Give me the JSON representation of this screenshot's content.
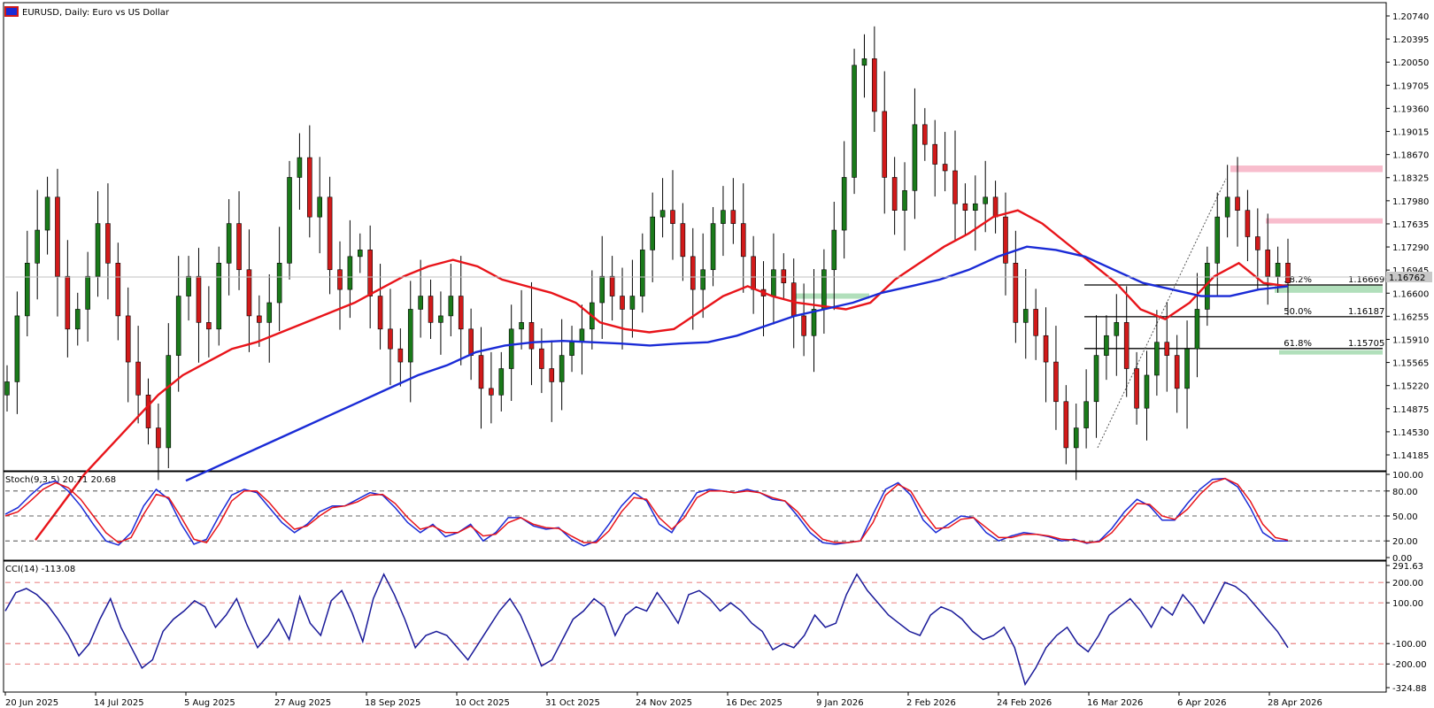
{
  "window": {
    "symbol": "EURUSD",
    "timeframe": "Daily",
    "description": "Euro vs US Dollar",
    "title_text": "EURUSD, Daily:  Euro vs US Dollar"
  },
  "colors": {
    "bull": "#1a7a1a",
    "bear": "#d11a1a",
    "ma_fast": "#e8141a",
    "ma_slow": "#1a2bd6",
    "stoch_main": "#1a2bd6",
    "stoch_signal": "#e8141a",
    "cci": "#1a1a99",
    "resistance_zone": "#f7b6c8",
    "support_zone": "#a8dcb4",
    "fib_line": "#000000"
  },
  "chart_data": [
    {
      "type": "candlestick",
      "panel": "price",
      "title": "EURUSD, Daily:  Euro vs US Dollar",
      "x_tick_labels": [
        "20 Jun 2025",
        "14 Jul 2025",
        "5 Aug 2025",
        "27 Aug 2025",
        "18 Sep 2025",
        "10 Oct 2025",
        "31 Oct 2025",
        "24 Nov 2025",
        "16 Dec 2025",
        "9 Jan 2026",
        "2 Feb 2026",
        "24 Feb 2026",
        "16 Mar 2026",
        "6 Apr 2026",
        "28 Apr 2026"
      ],
      "y_tick_labels": [
        "1.20740",
        "1.20395",
        "1.20050",
        "1.19705",
        "1.19360",
        "1.19015",
        "1.18670",
        "1.18325",
        "1.17980",
        "1.17635",
        "1.17290",
        "1.16945",
        "1.16600",
        "1.16255",
        "1.15910",
        "1.15565",
        "1.15220",
        "1.14875",
        "1.14530",
        "1.14185"
      ],
      "ylim": [
        1.1385,
        1.2095
      ],
      "current_price": "1.16762",
      "close_path": [
        1.152,
        1.162,
        1.17,
        1.175,
        1.18,
        1.168,
        1.16,
        1.163,
        1.168,
        1.176,
        1.17,
        1.162,
        1.155,
        1.15,
        1.145,
        1.142,
        1.156,
        1.165,
        1.168,
        1.161,
        1.16,
        1.17,
        1.176,
        1.169,
        1.162,
        1.161,
        1.164,
        1.17,
        1.183,
        1.186,
        1.177,
        1.18,
        1.169,
        1.166,
        1.171,
        1.172,
        1.165,
        1.16,
        1.157,
        1.155,
        1.163,
        1.165,
        1.161,
        1.162,
        1.165,
        1.16,
        1.156,
        1.151,
        1.15,
        1.154,
        1.16,
        1.161,
        1.157,
        1.154,
        1.152,
        1.156,
        1.158,
        1.16,
        1.164,
        1.168,
        1.165,
        1.163,
        1.165,
        1.172,
        1.177,
        1.178,
        1.176,
        1.171,
        1.166,
        1.169,
        1.176,
        1.178,
        1.176,
        1.171,
        1.166,
        1.165,
        1.169,
        1.167,
        1.162,
        1.159,
        1.163,
        1.169,
        1.175,
        1.183,
        1.2,
        1.201,
        1.193,
        1.183,
        1.178,
        1.181,
        1.191,
        1.188,
        1.185,
        1.184,
        1.179,
        1.178,
        1.179,
        1.18,
        1.177,
        1.17,
        1.161,
        1.163,
        1.159,
        1.155,
        1.149,
        1.142,
        1.145,
        1.149,
        1.156,
        1.159,
        1.161,
        1.154,
        1.148,
        1.153,
        1.158,
        1.156,
        1.151,
        1.157,
        1.163,
        1.17,
        1.177,
        1.18,
        1.178,
        1.174,
        1.172,
        1.168,
        1.17,
        1.167
      ],
      "ma_fast_path": [
        1.128,
        1.133,
        1.138,
        1.142,
        1.146,
        1.15,
        1.153,
        1.155,
        1.157,
        1.158,
        1.1595,
        1.161,
        1.1625,
        1.164,
        1.166,
        1.168,
        1.1695,
        1.1705,
        1.1695,
        1.1675,
        1.1665,
        1.1655,
        1.164,
        1.161,
        1.16,
        1.1595,
        1.16,
        1.1625,
        1.165,
        1.1665,
        1.165,
        1.164,
        1.1635,
        1.163,
        1.164,
        1.1675,
        1.17,
        1.1725,
        1.1745,
        1.177,
        1.178,
        1.176,
        1.173,
        1.17,
        1.167,
        1.163,
        1.1615,
        1.164,
        1.168,
        1.17,
        1.167,
        1.1665
      ],
      "ma_slow_path": [
        1.137,
        1.139,
        1.141,
        1.143,
        1.145,
        1.147,
        1.149,
        1.151,
        1.153,
        1.1545,
        1.1565,
        1.1575,
        1.158,
        1.1582,
        1.158,
        1.1578,
        1.1575,
        1.1578,
        1.158,
        1.159,
        1.1605,
        1.162,
        1.163,
        1.164,
        1.1655,
        1.1665,
        1.1675,
        1.169,
        1.171,
        1.1725,
        1.172,
        1.171,
        1.169,
        1.167,
        1.166,
        1.165,
        1.165,
        1.166,
        1.1665
      ],
      "zones": [
        {
          "kind": "resistance",
          "from": 1.1838,
          "to": 1.1848
        },
        {
          "kind": "resistance",
          "from": 1.176,
          "to": 1.1768
        },
        {
          "kind": "support",
          "from": 1.1655,
          "to": 1.1666
        },
        {
          "kind": "support",
          "from": 1.1562,
          "to": 1.1568
        },
        {
          "kind": "support",
          "from": 1.1646,
          "to": 1.1654
        }
      ],
      "fibonacci": [
        {
          "pct": "38.2%",
          "value": "1.16669",
          "price": 1.16669
        },
        {
          "pct": "50.0%",
          "value": "1.16187",
          "price": 1.16187
        },
        {
          "pct": "61.8%",
          "value": "1.15705",
          "price": 1.15705
        }
      ],
      "trend_line": {
        "from_price": 1.142,
        "to_price": 1.1828
      }
    },
    {
      "type": "line",
      "panel": "stochastic",
      "title": "Stoch(9,3,5) 20.71 20.68",
      "y_tick_labels": [
        "100.00",
        "80.00",
        "50.00",
        "20.00",
        "0.00"
      ],
      "ylim": [
        0,
        100
      ],
      "levels": [
        80,
        50,
        20
      ],
      "series": [
        {
          "key": "main",
          "values": [
            52,
            60,
            75,
            88,
            92,
            80,
            62,
            40,
            20,
            15,
            30,
            62,
            82,
            70,
            40,
            16,
            22,
            50,
            75,
            82,
            78,
            60,
            42,
            30,
            40,
            55,
            62,
            62,
            70,
            78,
            75,
            60,
            42,
            30,
            40,
            25,
            30,
            40,
            20,
            30,
            48,
            48,
            38,
            34,
            36,
            22,
            14,
            20,
            40,
            62,
            78,
            68,
            40,
            30,
            55,
            78,
            82,
            80,
            78,
            82,
            78,
            70,
            68,
            50,
            30,
            18,
            16,
            18,
            20,
            52,
            82,
            90,
            75,
            45,
            30,
            40,
            50,
            48,
            30,
            20,
            26,
            30,
            28,
            25,
            20,
            22,
            17,
            20,
            35,
            55,
            70,
            62,
            45,
            45,
            65,
            82,
            94,
            95,
            85,
            60,
            30,
            20,
            20
          ]
        },
        {
          "key": "signal",
          "values": [
            50,
            55,
            68,
            82,
            90,
            84,
            70,
            50,
            30,
            18,
            24,
            52,
            76,
            72,
            48,
            22,
            18,
            40,
            68,
            80,
            80,
            66,
            48,
            34,
            38,
            50,
            60,
            62,
            67,
            75,
            76,
            65,
            48,
            34,
            38,
            30,
            30,
            38,
            26,
            28,
            42,
            48,
            40,
            36,
            35,
            26,
            18,
            18,
            32,
            55,
            72,
            70,
            48,
            34,
            48,
            72,
            80,
            80,
            78,
            80,
            78,
            72,
            68,
            55,
            36,
            22,
            18,
            18,
            20,
            42,
            75,
            88,
            80,
            55,
            35,
            36,
            46,
            48,
            36,
            24,
            24,
            28,
            28,
            26,
            22,
            21,
            18,
            19,
            30,
            48,
            65,
            64,
            50,
            46,
            58,
            76,
            90,
            95,
            88,
            68,
            40,
            24,
            21
          ]
        }
      ]
    },
    {
      "type": "line",
      "panel": "cci",
      "title": "CCI(14) -113.08",
      "y_tick_labels": [
        "291.63",
        "200.00",
        "100.00",
        "-100.00",
        "-200.00",
        "-324.88"
      ],
      "ylim": [
        -324.88,
        291.63
      ],
      "levels": [
        200,
        100,
        -100,
        -200
      ],
      "series": [
        {
          "key": "cci",
          "values": [
            60,
            150,
            170,
            140,
            90,
            20,
            -60,
            -160,
            -100,
            20,
            120,
            -20,
            -120,
            -220,
            -180,
            -40,
            20,
            60,
            110,
            80,
            -20,
            40,
            120,
            -10,
            -120,
            -60,
            20,
            -80,
            130,
            0,
            -60,
            110,
            160,
            50,
            -90,
            120,
            240,
            140,
            20,
            -120,
            -60,
            -40,
            -60,
            -120,
            -180,
            -100,
            -20,
            60,
            120,
            40,
            -80,
            -210,
            -180,
            -80,
            20,
            60,
            120,
            80,
            -60,
            40,
            80,
            60,
            150,
            80,
            0,
            140,
            160,
            120,
            60,
            100,
            60,
            0,
            -40,
            -130,
            -100,
            -120,
            -60,
            40,
            -20,
            0,
            140,
            240,
            160,
            100,
            40,
            0,
            -40,
            -60,
            40,
            80,
            60,
            20,
            -40,
            -80,
            -60,
            -20,
            -120,
            -300,
            -220,
            -120,
            -60,
            -20,
            -100,
            -140,
            -60,
            40,
            80,
            120,
            60,
            -20,
            80,
            40,
            140,
            80,
            0,
            100,
            200,
            180,
            140,
            80,
            20,
            -40,
            -120
          ]
        }
      ]
    }
  ]
}
